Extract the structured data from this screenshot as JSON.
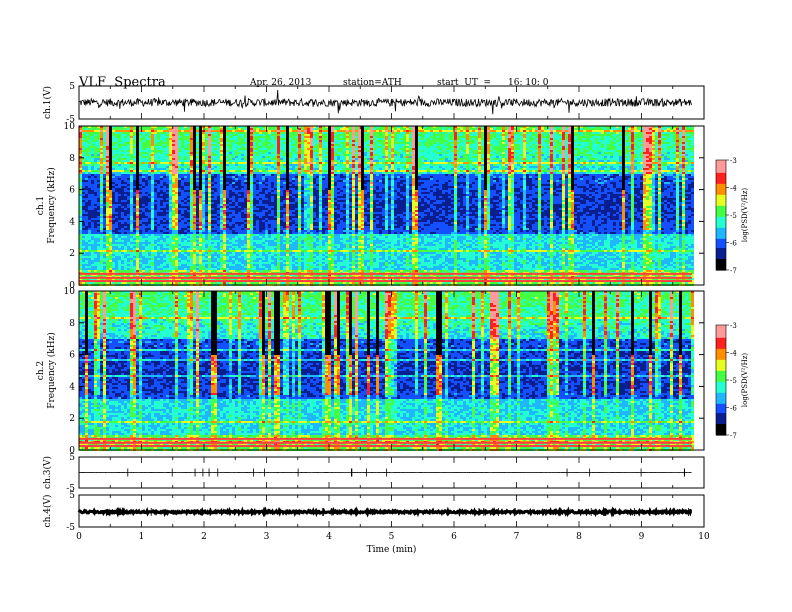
{
  "header": {
    "title": "VLF  Spectra",
    "date": "Apr. 26, 2013",
    "station": "station=ATH",
    "start_ut_label": "start  UT  =",
    "start_ut_value": "16: 10: 0"
  },
  "colors": {
    "colormap": [
      "#000000",
      "#0a1f8f",
      "#1450ff",
      "#1fb7ff",
      "#23ffd0",
      "#44ff44",
      "#e6ff20",
      "#ff8f00",
      "#ff2020",
      "#ff9a9a",
      "#ffffff"
    ],
    "trace": "#000000"
  },
  "chart_data": {
    "type": "heatmap",
    "x_axis": {
      "label": "Time  (min)",
      "range": [
        0,
        10
      ],
      "ticks": [
        0,
        1,
        2,
        3,
        4,
        5,
        6,
        7,
        8,
        9,
        10
      ],
      "data_end": 9.8
    },
    "panels": [
      {
        "id": "ch1-waveform",
        "kind": "line",
        "ylabel": "ch.1(V)",
        "yrange": [
          -5,
          5
        ],
        "yticks": [
          {
            "v": 5,
            "t": "5"
          },
          {
            "v": -5,
            "t": "-5"
          }
        ],
        "level_mean": 0,
        "level_amp": 1.2
      },
      {
        "id": "ch1-spectrogram",
        "kind": "heatmap",
        "ylabel_channel": "ch.1",
        "ylabel": "Frequency  (kHz)",
        "yrange": [
          0,
          10
        ],
        "yticks": [
          0,
          2,
          4,
          6,
          8,
          10
        ],
        "colorbar": {
          "label": "log(PSD(V²/Hz)",
          "range": [
            -7,
            -3
          ],
          "ticks": [
            -3,
            -4,
            -5,
            -6,
            -7
          ]
        }
      },
      {
        "id": "ch2-spectrogram",
        "kind": "heatmap",
        "ylabel_channel": "ch.2",
        "ylabel": "Frequency  (kHz)",
        "yrange": [
          0,
          10
        ],
        "yticks": [
          0,
          2,
          4,
          6,
          8,
          10
        ],
        "colorbar": {
          "label": "log(PSD(V²/Hz)",
          "range": [
            -7,
            -3
          ],
          "ticks": [
            -3,
            -4,
            -5,
            -6,
            -7
          ]
        }
      },
      {
        "id": "ch3-waveform",
        "kind": "line",
        "ylabel": "ch.3(V)",
        "yrange": [
          -5,
          5
        ],
        "yticks": [
          {
            "v": 5,
            "t": "5"
          },
          {
            "v": -5,
            "t": "-5"
          }
        ],
        "level_mean": 0,
        "level_amp": 0.05
      },
      {
        "id": "ch4-waveform",
        "kind": "line",
        "ylabel": "ch.4(V)",
        "yrange": [
          -5,
          5
        ],
        "yticks": [
          {
            "v": 5,
            "t": "5"
          },
          {
            "v": -5,
            "t": "-5"
          }
        ],
        "level_mean": -0.3,
        "level_amp": 0.35
      }
    ]
  }
}
